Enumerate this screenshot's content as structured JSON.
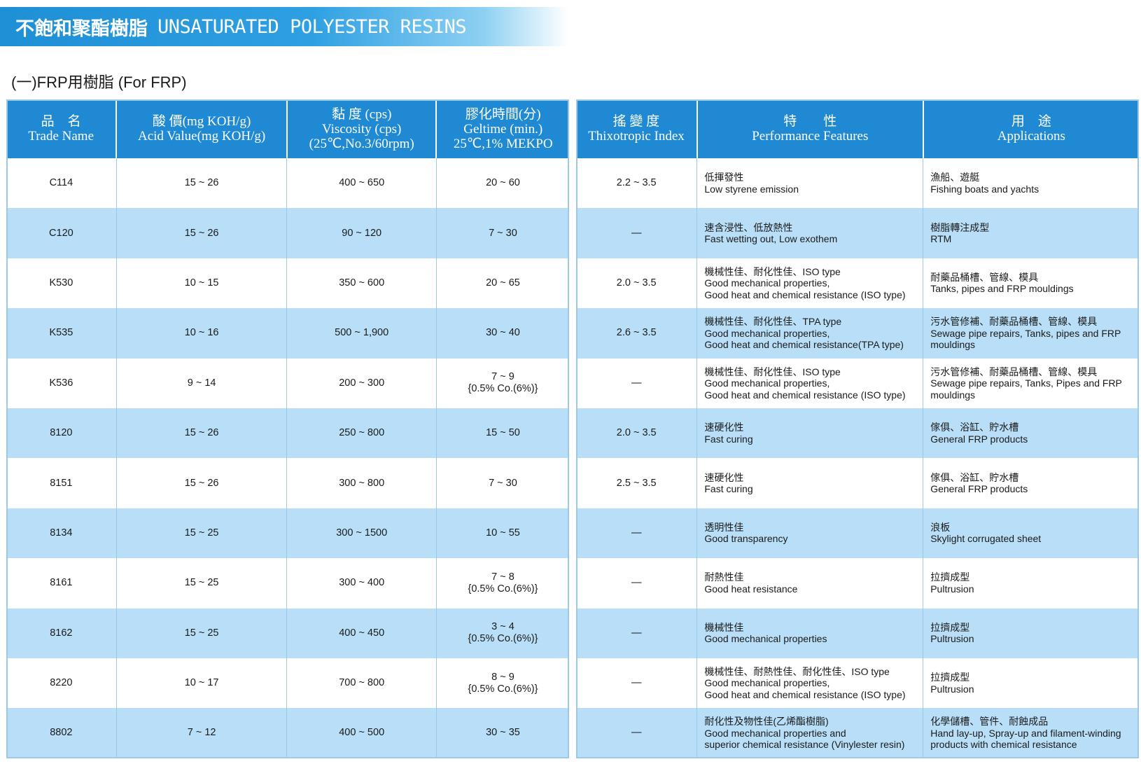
{
  "header": {
    "title_zh": "不飽和聚酯樹脂",
    "title_en": "UNSATURATED POLYESTER RESINS",
    "section": "(一)FRP用樹脂 (For FRP)"
  },
  "colors": {
    "header_blue": "#1f8ad3",
    "row_stripe": "#b8dff7",
    "banner_gradient_start": "#1f8fd6"
  },
  "columns_left": [
    {
      "zh": "品　名",
      "en": "Trade Name"
    },
    {
      "zh": "酸 價(mg KOH/g)",
      "en": "Acid Value(mg KOH/g)"
    },
    {
      "zh": "黏 度 (cps)",
      "en": "Viscosity (cps)",
      "en2": "(25℃,No.3/60rpm)"
    },
    {
      "zh": "膠化時間(分)",
      "en": "Geltime (min.)",
      "en2": "25℃,1% MEKPO"
    }
  ],
  "columns_right": [
    {
      "zh": "搖 變 度",
      "en": "Thixotropic Index"
    },
    {
      "zh": "特　　性",
      "en": "Performance Features"
    },
    {
      "zh": "用　途",
      "en": "Applications"
    }
  ],
  "rows": [
    {
      "name": "C114",
      "acid": "15 ~ 26",
      "viscosity": "400 ~ 650",
      "geltime": [
        "20 ~ 60"
      ],
      "thixo": "2.2 ~ 3.5",
      "features": [
        "低揮發性",
        "Low styrene emission"
      ],
      "applications": [
        "漁船、遊艇",
        "Fishing boats and yachts"
      ]
    },
    {
      "name": "C120",
      "acid": "15 ~ 26",
      "viscosity": "90 ~ 120",
      "geltime": [
        "7 ~ 30"
      ],
      "thixo": "—",
      "features": [
        "速含浸性、低放熱性",
        "Fast wetting out, Low exothem"
      ],
      "applications": [
        "樹脂轉注成型",
        "RTM"
      ]
    },
    {
      "name": "K530",
      "acid": "10 ~ 15",
      "viscosity": "350 ~ 600",
      "geltime": [
        "20 ~ 65"
      ],
      "thixo": "2.0 ~ 3.5",
      "features": [
        "機械性佳、耐化性佳、ISO type",
        "Good mechanical properties,",
        "Good heat and chemical resistance (ISO type)"
      ],
      "applications": [
        "耐藥品桶槽、管線、模具",
        "Tanks, pipes and FRP mouldings"
      ]
    },
    {
      "name": "K535",
      "acid": "10 ~ 16",
      "viscosity": "500 ~ 1,900",
      "geltime": [
        "30 ~ 40"
      ],
      "thixo": "2.6 ~ 3.5",
      "features": [
        "機械性佳、耐化性佳、TPA type",
        "Good mechanical properties,",
        "Good heat and chemical resistance(TPA type)"
      ],
      "applications": [
        "污水管修補、耐藥品桶槽、管線、模具",
        "Sewage pipe repairs, Tanks, pipes and FRP",
        "mouldings"
      ]
    },
    {
      "name": "K536",
      "acid": "9 ~ 14",
      "viscosity": "200 ~ 300",
      "geltime": [
        "7 ~ 9",
        "{0.5% Co.(6%)}"
      ],
      "thixo": "—",
      "features": [
        "機械性佳、耐化性佳、ISO type",
        "Good mechanical properties,",
        "Good heat and chemical resistance (ISO type)"
      ],
      "applications": [
        "污水管修補、耐藥品桶槽、管線、模具",
        "Sewage pipe repairs, Tanks, Pipes and FRP",
        "mouldings"
      ]
    },
    {
      "name": "8120",
      "acid": "15 ~ 26",
      "viscosity": "250 ~ 800",
      "geltime": [
        "15 ~ 50"
      ],
      "thixo": "2.0 ~ 3.5",
      "features": [
        "速硬化性",
        "Fast curing"
      ],
      "applications": [
        "傢俱、浴缸、貯水槽",
        "General FRP products"
      ]
    },
    {
      "name": "8151",
      "acid": "15 ~ 26",
      "viscosity": "300 ~ 800",
      "geltime": [
        "7 ~ 30"
      ],
      "thixo": "2.5 ~ 3.5",
      "features": [
        "速硬化性",
        "Fast curing"
      ],
      "applications": [
        "傢俱、浴缸、貯水槽",
        "General FRP products"
      ]
    },
    {
      "name": "8134",
      "acid": "15 ~ 25",
      "viscosity": "300 ~ 1500",
      "geltime": [
        "10 ~ 55"
      ],
      "thixo": "—",
      "features": [
        "透明性佳",
        "Good transparency"
      ],
      "applications": [
        "浪板",
        "Skylight corrugated sheet"
      ]
    },
    {
      "name": "8161",
      "acid": "15 ~ 25",
      "viscosity": "300 ~ 400",
      "geltime": [
        "7 ~ 8",
        "{0.5% Co.(6%)}"
      ],
      "thixo": "—",
      "features": [
        "耐熱性佳",
        "Good heat resistance"
      ],
      "applications": [
        "拉擠成型",
        "Pultrusion"
      ]
    },
    {
      "name": "8162",
      "acid": "15 ~ 25",
      "viscosity": "400 ~ 450",
      "geltime": [
        "3 ~ 4",
        "{0.5% Co.(6%)}"
      ],
      "thixo": "—",
      "features": [
        "機械性佳",
        "Good mechanical properties"
      ],
      "applications": [
        "拉擠成型",
        "Pultrusion"
      ]
    },
    {
      "name": "8220",
      "acid": "10 ~ 17",
      "viscosity": "700 ~ 800",
      "geltime": [
        "8 ~ 9",
        "{0.5% Co.(6%)}"
      ],
      "thixo": "—",
      "features": [
        "機械性佳、耐熱性佳、耐化性佳、ISO type",
        "Good mechanical properties,",
        "Good heat and chemical resistance (ISO type)"
      ],
      "applications": [
        "拉擠成型",
        "Pultrusion"
      ]
    },
    {
      "name": "8802",
      "acid": "7 ~ 12",
      "viscosity": "400 ~ 500",
      "geltime": [
        "30 ~ 35"
      ],
      "thixo": "—",
      "features": [
        "耐化性及物性佳(乙烯酯樹脂)",
        "Good mechanical properties and",
        "superior chemical resistance (Vinylester resin)"
      ],
      "applications": [
        "化學儲槽、管件、耐蝕成品",
        "Hand lay-up, Spray-up and filament-winding",
        "products with chemical resistance"
      ]
    }
  ]
}
